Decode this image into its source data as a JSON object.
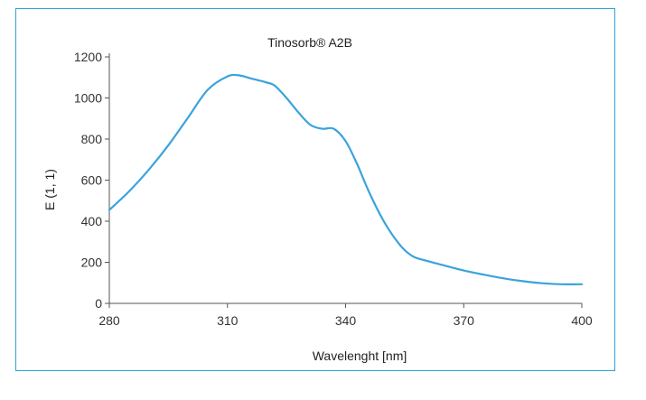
{
  "chart_data": {
    "type": "line",
    "title": "Tinosorb® A2B",
    "xlabel": "Wavelenght [nm]",
    "ylabel": "E (1, 1)",
    "xlim": [
      280,
      400
    ],
    "ylim": [
      0,
      1200
    ],
    "x_ticks": [
      "280",
      "310",
      "340",
      "370",
      "400"
    ],
    "y_ticks": [
      "0",
      "200",
      "400",
      "600",
      "800",
      "1000",
      "1200"
    ],
    "grid": false,
    "series": [
      {
        "color": "#3aa3dc",
        "x": [
          280,
          285,
          290,
          295,
          300,
          305,
          310,
          313,
          316,
          320,
          322,
          325,
          328,
          331,
          334,
          337,
          340,
          343,
          346,
          350,
          354,
          357,
          360,
          365,
          370,
          375,
          380,
          385,
          390,
          395,
          400
        ],
        "y": [
          455,
          545,
          650,
          770,
          905,
          1040,
          1105,
          1110,
          1095,
          1075,
          1060,
          1000,
          930,
          870,
          850,
          850,
          790,
          675,
          540,
          390,
          280,
          230,
          210,
          185,
          160,
          140,
          122,
          108,
          98,
          93,
          93
        ]
      }
    ]
  }
}
